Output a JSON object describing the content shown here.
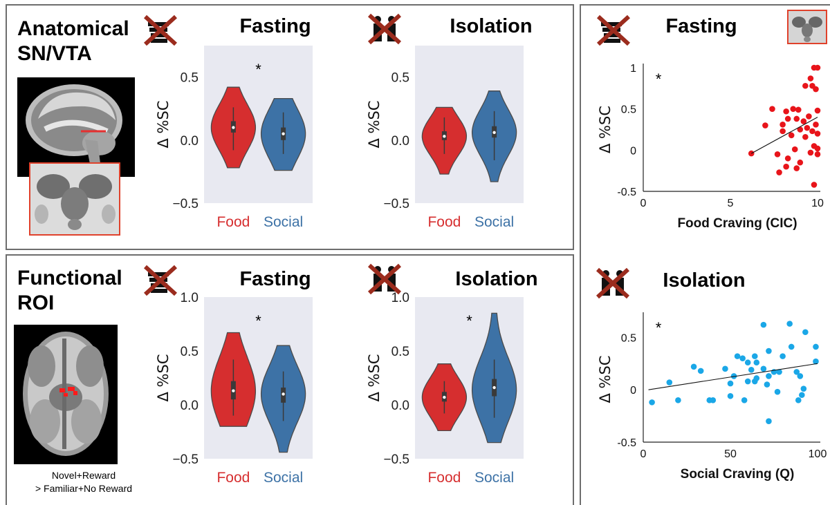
{
  "panels": {
    "anatomical": {
      "label_line1": "Anatomical",
      "label_line2": "SN/VTA"
    },
    "functional": {
      "label_line1": "Functional",
      "label_line2": "ROI",
      "caption_line1": "Novel+Reward",
      "caption_line2": "> Familiar+No Reward"
    }
  },
  "icons": {
    "fasting": "crossed-out-food-icon",
    "isolation": "crossed-out-people-icon"
  },
  "colors": {
    "food": "#d62e2f",
    "social": "#3d72a6",
    "plot_bg": "#e8e9f1",
    "scatter_red": "#e8141a",
    "scatter_blue": "#1aa7e7",
    "roi_box": "#e0412b"
  },
  "chart_data": [
    {
      "id": "violin-anat-fasting",
      "type": "violin",
      "title": "Fasting",
      "ylabel": "Δ %SC",
      "ylim": [
        -0.5,
        0.75
      ],
      "yticks": [
        "0.5",
        "0.0",
        "−0.5"
      ],
      "ytick_values": [
        0.5,
        0.0,
        -0.5
      ],
      "categories": [
        "Food",
        "Social"
      ],
      "annotation": "*",
      "series": [
        {
          "name": "Food",
          "median": 0.1,
          "q1": 0.06,
          "q3": 0.15,
          "whisker_low": -0.08,
          "whisker_high": 0.26,
          "min": -0.22,
          "max": 0.42,
          "peak": 0.1
        },
        {
          "name": "Social",
          "median": 0.05,
          "q1": 0.0,
          "q3": 0.1,
          "whisker_low": -0.11,
          "whisker_high": 0.22,
          "min": -0.24,
          "max": 0.33,
          "peak": 0.05
        }
      ]
    },
    {
      "id": "violin-anat-isolation",
      "type": "violin",
      "title": "Isolation",
      "ylabel": "Δ %SC",
      "ylim": [
        -0.5,
        0.75
      ],
      "yticks": [
        "0.5",
        "0.0",
        "−0.5"
      ],
      "ytick_values": [
        0.5,
        0.0,
        -0.5
      ],
      "categories": [
        "Food",
        "Social"
      ],
      "annotation": "",
      "series": [
        {
          "name": "Food",
          "median": 0.03,
          "q1": 0.0,
          "q3": 0.07,
          "whisker_low": -0.11,
          "whisker_high": 0.18,
          "min": -0.27,
          "max": 0.26,
          "peak": 0.03
        },
        {
          "name": "Social",
          "median": 0.06,
          "q1": 0.02,
          "q3": 0.11,
          "whisker_low": -0.16,
          "whisker_high": 0.23,
          "min": -0.33,
          "max": 0.39,
          "peak": 0.06
        }
      ]
    },
    {
      "id": "violin-func-fasting",
      "type": "violin",
      "title": "Fasting",
      "ylabel": "Δ %SC",
      "ylim": [
        -0.5,
        1.0
      ],
      "yticks": [
        "1.0",
        "0.5",
        "0.0",
        "−0.5"
      ],
      "ytick_values": [
        1.0,
        0.5,
        0.0,
        -0.5
      ],
      "categories": [
        "Food",
        "Social"
      ],
      "annotation": "*",
      "series": [
        {
          "name": "Food",
          "median": 0.13,
          "q1": 0.05,
          "q3": 0.22,
          "whisker_low": -0.1,
          "whisker_high": 0.42,
          "min": -0.2,
          "max": 0.67,
          "peak": 0.13
        },
        {
          "name": "Social",
          "median": 0.1,
          "q1": 0.02,
          "q3": 0.16,
          "whisker_low": -0.15,
          "whisker_high": 0.31,
          "min": -0.44,
          "max": 0.55,
          "peak": 0.1
        }
      ]
    },
    {
      "id": "violin-func-isolation",
      "type": "violin",
      "title": "Isolation",
      "ylabel": "Δ %SC",
      "ylim": [
        -0.5,
        1.0
      ],
      "yticks": [
        "1.0",
        "0.5",
        "0.0",
        "−0.5"
      ],
      "ytick_values": [
        1.0,
        0.5,
        0.0,
        -0.5
      ],
      "categories": [
        "Food",
        "Social"
      ],
      "annotation": "*",
      "series": [
        {
          "name": "Food",
          "median": 0.07,
          "q1": 0.03,
          "q3": 0.12,
          "whisker_low": -0.08,
          "whisker_high": 0.22,
          "min": -0.24,
          "max": 0.38,
          "peak": 0.07
        },
        {
          "name": "Social",
          "median": 0.16,
          "q1": 0.08,
          "q3": 0.24,
          "whisker_low": -0.12,
          "whisker_high": 0.42,
          "min": -0.35,
          "max": 0.85,
          "peak": 0.14
        }
      ]
    },
    {
      "id": "scatter-fasting",
      "type": "scatter",
      "title": "Fasting",
      "ylabel": "Δ %SC",
      "xlabel": "Food Craving (CIC)",
      "xlim": [
        0,
        10
      ],
      "ylim": [
        -0.5,
        1.0
      ],
      "xticks": [
        "0",
        "5",
        "10"
      ],
      "xtick_values": [
        0,
        5,
        10
      ],
      "yticks": [
        "1",
        "0.5",
        "0",
        "-0.5"
      ],
      "ytick_values": [
        1.0,
        0.5,
        0.0,
        -0.5
      ],
      "annotation": "*",
      "trendline": {
        "x": [
          6.2,
          10.0
        ],
        "y": [
          -0.04,
          0.4
        ]
      },
      "points": [
        [
          9.8,
          1.0
        ],
        [
          10.0,
          1.0
        ],
        [
          9.6,
          0.87
        ],
        [
          9.3,
          0.78
        ],
        [
          9.7,
          0.78
        ],
        [
          9.9,
          0.74
        ],
        [
          7.4,
          0.5
        ],
        [
          8.2,
          0.47
        ],
        [
          8.6,
          0.5
        ],
        [
          8.9,
          0.49
        ],
        [
          10.0,
          0.48
        ],
        [
          9.5,
          0.41
        ],
        [
          8.3,
          0.38
        ],
        [
          8.8,
          0.38
        ],
        [
          9.2,
          0.35
        ],
        [
          7.0,
          0.3
        ],
        [
          8.0,
          0.31
        ],
        [
          9.9,
          0.31
        ],
        [
          9.4,
          0.27
        ],
        [
          9.0,
          0.25
        ],
        [
          10.0,
          0.2
        ],
        [
          8.0,
          0.23
        ],
        [
          9.7,
          0.23
        ],
        [
          8.5,
          0.18
        ],
        [
          9.3,
          0.16
        ],
        [
          9.8,
          0.05
        ],
        [
          10.0,
          0.02
        ],
        [
          8.7,
          0.01
        ],
        [
          9.6,
          -0.03
        ],
        [
          10.0,
          -0.05
        ],
        [
          6.2,
          -0.04
        ],
        [
          7.7,
          -0.05
        ],
        [
          8.3,
          -0.1
        ],
        [
          9.0,
          -0.15
        ],
        [
          8.2,
          -0.2
        ],
        [
          8.8,
          -0.22
        ],
        [
          7.8,
          -0.27
        ],
        [
          9.8,
          -0.42
        ]
      ]
    },
    {
      "id": "scatter-isolation",
      "type": "scatter",
      "title": "Isolation",
      "ylabel": "Δ %SC",
      "xlabel": "Social Craving (Q)",
      "xlim": [
        0,
        100
      ],
      "ylim": [
        -0.5,
        0.7
      ],
      "xticks": [
        "0",
        "50",
        "100"
      ],
      "xtick_values": [
        0,
        50,
        100
      ],
      "yticks": [
        "0.5",
        "0",
        "-0.5"
      ],
      "ytick_values": [
        0.5,
        0.0,
        -0.5
      ],
      "annotation": "*",
      "trendline": {
        "x": [
          3,
          100
        ],
        "y": [
          0.0,
          0.25
        ]
      },
      "points": [
        [
          84,
          0.63
        ],
        [
          69,
          0.62
        ],
        [
          93,
          0.55
        ],
        [
          85,
          0.41
        ],
        [
          99,
          0.41
        ],
        [
          72,
          0.37
        ],
        [
          54,
          0.32
        ],
        [
          57,
          0.3
        ],
        [
          64,
          0.32
        ],
        [
          60,
          0.26
        ],
        [
          65,
          0.26
        ],
        [
          80,
          0.32
        ],
        [
          99,
          0.27
        ],
        [
          29,
          0.22
        ],
        [
          33,
          0.18
        ],
        [
          47,
          0.2
        ],
        [
          62,
          0.19
        ],
        [
          69,
          0.2
        ],
        [
          75,
          0.17
        ],
        [
          78,
          0.17
        ],
        [
          88,
          0.17
        ],
        [
          52,
          0.13
        ],
        [
          65,
          0.11
        ],
        [
          72,
          0.13
        ],
        [
          90,
          0.13
        ],
        [
          60,
          0.08
        ],
        [
          64,
          0.08
        ],
        [
          50,
          0.06
        ],
        [
          15,
          0.07
        ],
        [
          71,
          0.05
        ],
        [
          92,
          0.01
        ],
        [
          77,
          -0.02
        ],
        [
          50,
          -0.06
        ],
        [
          91,
          -0.05
        ],
        [
          20,
          -0.1
        ],
        [
          38,
          -0.1
        ],
        [
          40,
          -0.1
        ],
        [
          89,
          -0.1
        ],
        [
          58,
          -0.1
        ],
        [
          5,
          -0.12
        ],
        [
          72,
          -0.3
        ]
      ]
    }
  ]
}
